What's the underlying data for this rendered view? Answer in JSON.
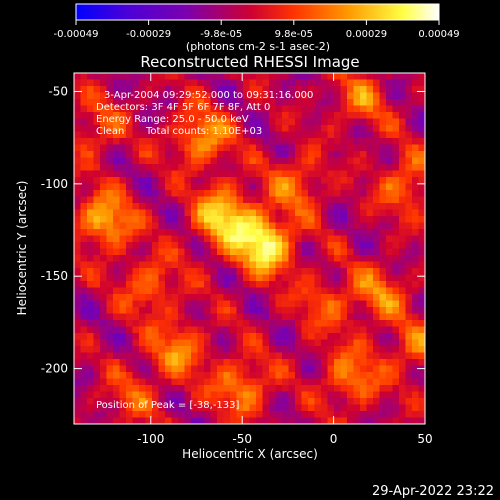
{
  "colorbar": {
    "tick_labels": [
      "-0.00049",
      "-0.00029",
      "-9.8e-05",
      "9.8e-05",
      "0.00029",
      "0.00049"
    ],
    "unit_label": "(photons cm-2 s-1 asec-2)",
    "colors": [
      "#0000ff",
      "#4b00d8",
      "#7a00b0",
      "#cc0033",
      "#ff3300",
      "#ff9900",
      "#ffff44",
      "#ffffff"
    ]
  },
  "title": "Reconstructed RHESSI Image",
  "annotations": {
    "time_range": "3-Apr-2004 09:29:52.000 to 09:31:16.000",
    "detectors": "Detectors: 3F 4F 5F 6F 7F 8F, Att 0",
    "energy_range": "Energy Range: 25.0 - 50.0 keV",
    "method": "Clean",
    "total_counts": "Total counts: 1.10E+03",
    "peak_position": "Position of Peak = [-38,-133]"
  },
  "timestamp": "29-Apr-2022 23:22",
  "chart_data": {
    "type": "heatmap",
    "title": "Reconstructed RHESSI Image",
    "xlabel": "Heliocentric X (arcsec)",
    "ylabel": "Heliocentric Y (arcsec)",
    "xlim": [
      -142,
      50
    ],
    "ylim": [
      -230,
      -40
    ],
    "x_ticks": [
      -100,
      -50,
      0,
      50
    ],
    "x_tick_labels": [
      "-100",
      "-50",
      "0",
      "50"
    ],
    "y_ticks": [
      -50,
      -100,
      -150,
      -200
    ],
    "y_tick_labels": [
      "-50",
      "-100",
      "-150",
      "-200"
    ],
    "colorbar_range": [
      -0.00049,
      0.00049
    ],
    "peak": [
      -38,
      -133
    ],
    "colormap": "blue-purple-red-yellow-white",
    "hotspots": [
      {
        "x": -125,
        "y": -120,
        "value": 0.00035
      },
      {
        "x": -60,
        "y": -118,
        "value": 0.0004
      },
      {
        "x": -38,
        "y": -133,
        "value": 0.00049
      },
      {
        "x": -72,
        "y": -75,
        "value": 0.0003
      },
      {
        "x": -20,
        "y": -100,
        "value": 0.00022
      },
      {
        "x": 15,
        "y": -55,
        "value": 0.0002
      },
      {
        "x": 40,
        "y": -100,
        "value": 0.00024
      },
      {
        "x": -100,
        "y": -155,
        "value": 0.00022
      },
      {
        "x": -85,
        "y": -190,
        "value": 0.00025
      },
      {
        "x": -50,
        "y": -210,
        "value": 0.00028
      },
      {
        "x": 25,
        "y": -160,
        "value": 0.00023
      },
      {
        "x": 10,
        "y": -205,
        "value": 0.00026
      },
      {
        "x": 45,
        "y": -190,
        "value": 0.0002
      },
      {
        "x": -130,
        "y": -70,
        "value": 0.00018
      },
      {
        "x": -5,
        "y": -165,
        "value": 0.00018
      },
      {
        "x": -110,
        "y": -215,
        "value": 0.00015
      }
    ]
  }
}
